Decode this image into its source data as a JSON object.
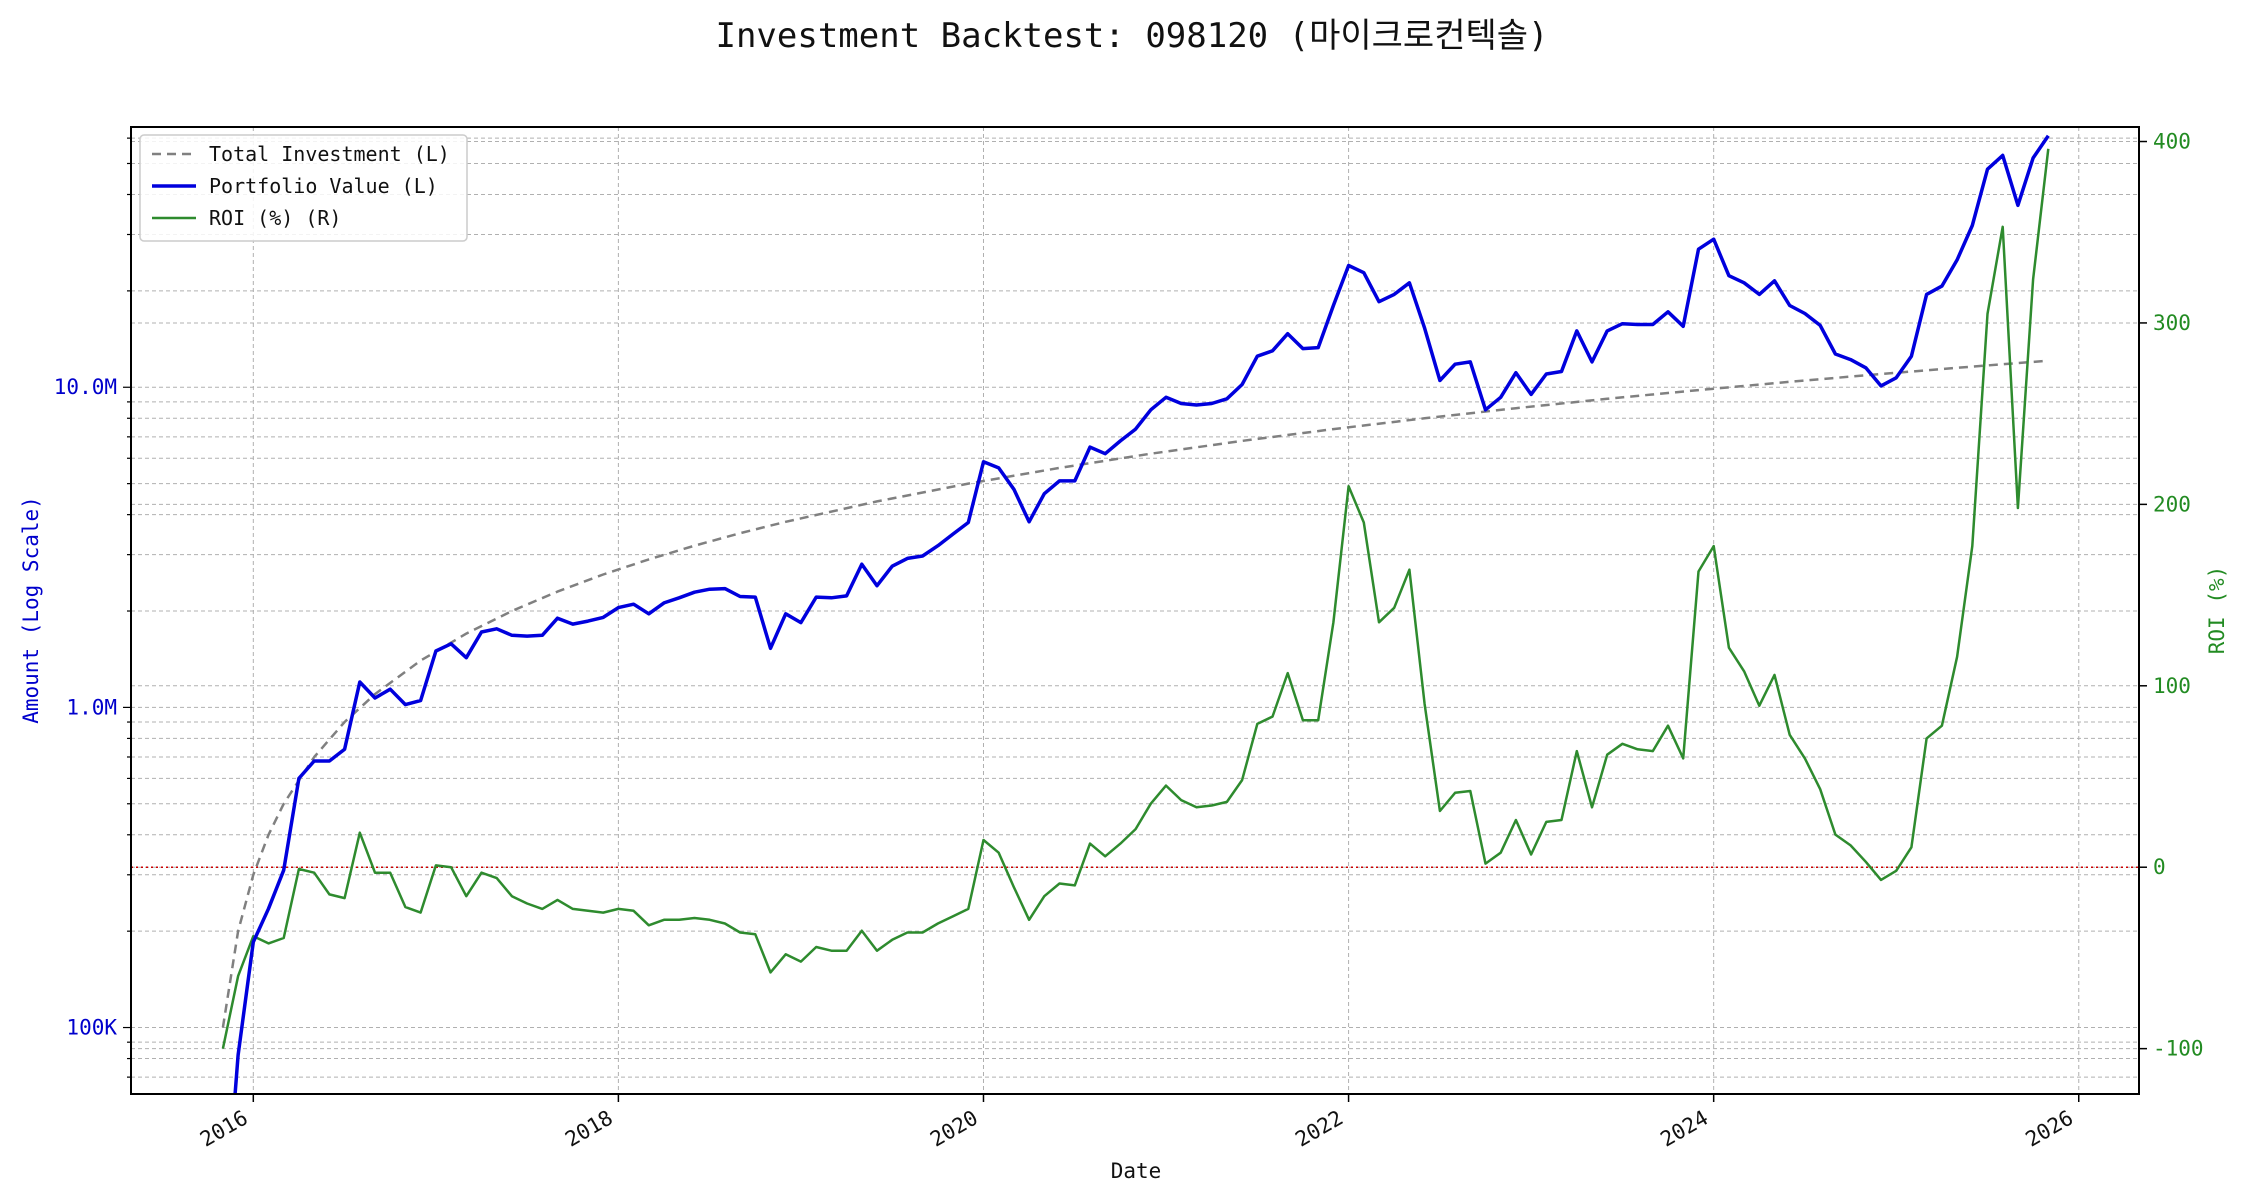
{
  "chart_data": {
    "type": "line",
    "title": "Investment Backtest: 098120 (마이크로컨텍솔)",
    "xlabel": "Date",
    "ylabel_left": "Amount (Log Scale)",
    "ylabel_right": "ROI (%)",
    "x_ticks": [
      "2016",
      "2018",
      "2020",
      "2022",
      "2024",
      "2026"
    ],
    "y_left_scale": "log",
    "y_left_ticks": [
      {
        "value": 100000,
        "label": "100K"
      },
      {
        "value": 1000000,
        "label": "1.0M"
      },
      {
        "value": 10000000,
        "label": "10.0M"
      }
    ],
    "y_left_lim": [
      62000,
      65000000
    ],
    "y_right_ticks": [
      -100,
      0,
      100,
      200,
      300,
      400
    ],
    "y_right_lim": [
      -125,
      408
    ],
    "x_lim": [
      2015.33,
      2026.33
    ],
    "grid": true,
    "legend_position": "top-left",
    "colors": {
      "investment": "#808080",
      "portfolio": "#0000dd",
      "roi": "#2e8b2e",
      "zero_line": "#cc0000"
    },
    "series": [
      {
        "name": "Total Investment (L)",
        "axis": "left",
        "style": "dashed",
        "x": [
          "2015-11",
          "2015-12",
          "2016-01",
          "2016-02",
          "2016-03",
          "2016-05",
          "2016-07",
          "2016-09",
          "2016-12",
          "2017-03",
          "2017-06",
          "2017-09",
          "2017-12",
          "2018-03",
          "2018-06",
          "2018-09",
          "2018-12",
          "2019-06",
          "2019-12",
          "2020-06",
          "2020-12",
          "2021-06",
          "2021-12",
          "2022-06",
          "2022-12",
          "2023-06",
          "2023-12",
          "2024-06",
          "2024-12",
          "2025-06",
          "2025-11"
        ],
        "values": [
          100000,
          200000,
          300000,
          400000,
          500000,
          700000,
          900000,
          1100000,
          1400000,
          1700000,
          2000000,
          2300000,
          2600000,
          2900000,
          3200000,
          3500000,
          3800000,
          4400000,
          5000000,
          5600000,
          6200000,
          6800000,
          7400000,
          8000000,
          8600000,
          9200000,
          9800000,
          10400000,
          11000000,
          11600000,
          12100000
        ]
      },
      {
        "name": "Portfolio Value (L)",
        "axis": "left",
        "style": "solid",
        "x": [
          "2015-11",
          "2015-12",
          "2016-01",
          "2016-02",
          "2016-03",
          "2016-04",
          "2016-05",
          "2016-06",
          "2016-07",
          "2016-08",
          "2016-09",
          "2016-10",
          "2016-11",
          "2016-12",
          "2017-01",
          "2017-02",
          "2017-03",
          "2017-04",
          "2017-05",
          "2017-06",
          "2017-07",
          "2017-08",
          "2017-09",
          "2017-10",
          "2017-11",
          "2017-12",
          "2018-01",
          "2018-02",
          "2018-03",
          "2018-04",
          "2018-05",
          "2018-06",
          "2018-07",
          "2018-08",
          "2018-09",
          "2018-10",
          "2018-11",
          "2018-12",
          "2019-01",
          "2019-02",
          "2019-03",
          "2019-04",
          "2019-05",
          "2019-06",
          "2019-07",
          "2019-08",
          "2019-09",
          "2019-10",
          "2019-11",
          "2019-12",
          "2020-01",
          "2020-02",
          "2020-03",
          "2020-04",
          "2020-05",
          "2020-06",
          "2020-07",
          "2020-08",
          "2020-09",
          "2020-10",
          "2020-11",
          "2020-12",
          "2021-01",
          "2021-02",
          "2021-03",
          "2021-04",
          "2021-05",
          "2021-06",
          "2021-07",
          "2021-08",
          "2021-09",
          "2021-10",
          "2021-11",
          "2021-12",
          "2022-01",
          "2022-02",
          "2022-03",
          "2022-04",
          "2022-05",
          "2022-06",
          "2022-07",
          "2022-08",
          "2022-09",
          "2022-10",
          "2022-11",
          "2022-12",
          "2023-01",
          "2023-02",
          "2023-03",
          "2023-04",
          "2023-05",
          "2023-06",
          "2023-07",
          "2023-08",
          "2023-09",
          "2023-10",
          "2023-11",
          "2023-12",
          "2024-01",
          "2024-02",
          "2024-03",
          "2024-04",
          "2024-05",
          "2024-06",
          "2024-07",
          "2024-08",
          "2024-09",
          "2024-10",
          "2024-11",
          "2024-12",
          "2025-01",
          "2025-02",
          "2025-03",
          "2025-04",
          "2025-05",
          "2025-06",
          "2025-07",
          "2025-08",
          "2025-09",
          "2025-10",
          "2025-11"
        ],
        "values": [
          20000,
          82000,
          185000,
          235000,
          310000,
          600000,
          680000,
          680000,
          740000,
          1200000,
          1070000,
          1140000,
          1020000,
          1050000,
          1500000,
          1580000,
          1430000,
          1720000,
          1760000,
          1680000,
          1670000,
          1680000,
          1900000,
          1820000,
          1860000,
          1910000,
          2050000,
          2100000,
          1960000,
          2120000,
          2200000,
          2290000,
          2340000,
          2350000,
          2220000,
          2210000,
          1530000,
          1960000,
          1840000,
          2210000,
          2200000,
          2230000,
          2800000,
          2400000,
          2760000,
          2920000,
          2970000,
          3200000,
          3480000,
          3780000,
          5850000,
          5600000,
          4800000,
          3800000,
          4650000,
          5100000,
          5100000,
          6500000,
          6200000,
          6800000,
          7400000,
          8500000,
          9300000,
          8900000,
          8800000,
          8900000,
          9200000,
          10200000,
          12500000,
          13000000,
          14700000,
          13200000,
          13300000,
          18000000,
          24000000,
          22800000,
          18500000,
          19500000,
          21200000,
          15300000,
          10500000,
          11800000,
          12000000,
          8500000,
          9300000,
          11100000,
          9500000,
          11000000,
          11200000,
          15000000,
          12000000,
          15000000,
          15800000,
          15700000,
          15700000,
          17200000,
          15500000,
          27000000,
          29000000,
          22300000,
          21200000,
          19500000,
          21500000,
          18000000,
          17000000,
          15600000,
          12700000,
          12200000,
          11500000,
          10100000,
          10700000,
          12500000,
          19500000,
          20700000,
          25000000,
          32000000,
          48000000,
          53000000,
          37000000,
          52000000,
          61000000
        ]
      },
      {
        "name": "ROI (%) (R)",
        "axis": "right",
        "style": "solid",
        "x": [
          "2015-11",
          "2015-12",
          "2016-01",
          "2016-02",
          "2016-03",
          "2016-04",
          "2016-05",
          "2016-06",
          "2016-07",
          "2016-08",
          "2016-09",
          "2016-10",
          "2016-11",
          "2016-12",
          "2017-01",
          "2017-02",
          "2017-03",
          "2017-04",
          "2017-05",
          "2017-06",
          "2017-07",
          "2017-08",
          "2017-09",
          "2017-10",
          "2017-11",
          "2017-12",
          "2018-01",
          "2018-02",
          "2018-03",
          "2018-04",
          "2018-05",
          "2018-06",
          "2018-07",
          "2018-08",
          "2018-09",
          "2018-10",
          "2018-11",
          "2018-12",
          "2019-01",
          "2019-02",
          "2019-03",
          "2019-04",
          "2019-05",
          "2019-06",
          "2019-07",
          "2019-08",
          "2019-09",
          "2019-10",
          "2019-11",
          "2019-12",
          "2020-01",
          "2020-02",
          "2020-03",
          "2020-04",
          "2020-05",
          "2020-06",
          "2020-07",
          "2020-08",
          "2020-09",
          "2020-10",
          "2020-11",
          "2020-12",
          "2021-01",
          "2021-02",
          "2021-03",
          "2021-04",
          "2021-05",
          "2021-06",
          "2021-07",
          "2021-08",
          "2021-09",
          "2021-10",
          "2021-11",
          "2021-12",
          "2022-01",
          "2022-02",
          "2022-03",
          "2022-04",
          "2022-05",
          "2022-06",
          "2022-07",
          "2022-08",
          "2022-09",
          "2022-10",
          "2022-11",
          "2022-12",
          "2023-01",
          "2023-02",
          "2023-03",
          "2023-04",
          "2023-05",
          "2023-06",
          "2023-07",
          "2023-08",
          "2023-09",
          "2023-10",
          "2023-11",
          "2023-12",
          "2024-01",
          "2024-02",
          "2024-03",
          "2024-04",
          "2024-05",
          "2024-06",
          "2024-07",
          "2024-08",
          "2024-09",
          "2024-10",
          "2024-11",
          "2024-12",
          "2025-01",
          "2025-02",
          "2025-03",
          "2025-04",
          "2025-05",
          "2025-06",
          "2025-07",
          "2025-08",
          "2025-09",
          "2025-10",
          "2025-11"
        ],
        "values": [
          -100,
          -60,
          -38,
          -42,
          -39,
          -1,
          -3,
          -15,
          -17,
          19,
          -3,
          -3,
          -22,
          -25,
          1,
          0,
          -16,
          -3,
          -6,
          -16,
          -20,
          -23,
          -18,
          -23,
          -24,
          -25,
          -23,
          -24,
          -32,
          -29,
          -29,
          -28,
          -29,
          -31,
          -36,
          -37,
          -58,
          -48,
          -52,
          -44,
          -46,
          -46,
          -35,
          -46,
          -40,
          -36,
          -36,
          -31,
          -27,
          -23,
          15,
          8,
          -11,
          -29,
          -16,
          -9,
          -10,
          13,
          6,
          13,
          21,
          35,
          45,
          37,
          33,
          34,
          36,
          48,
          79,
          83,
          107,
          81,
          81,
          135,
          210,
          190,
          135,
          143,
          164,
          90,
          31,
          41,
          42,
          2,
          8,
          26,
          7,
          25,
          26,
          64,
          33,
          62,
          68,
          65,
          64,
          78,
          60,
          163,
          177,
          121,
          108,
          89,
          106,
          73,
          60,
          43,
          18,
          12,
          3,
          -7,
          -2,
          11,
          71,
          78,
          116,
          177,
          305,
          353,
          198,
          324,
          396
        ]
      }
    ],
    "reference_lines": [
      {
        "axis": "right",
        "value": 0,
        "style": "dotted"
      }
    ]
  }
}
